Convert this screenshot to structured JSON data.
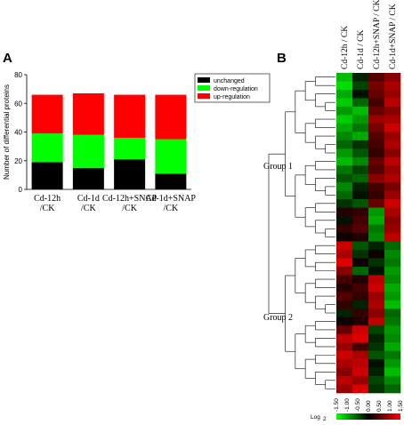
{
  "panels": {
    "a_letter": "A",
    "b_letter": "B"
  },
  "chart_data": [
    {
      "type": "bar",
      "stacked": true,
      "title": "",
      "ylabel": "Number of differential proteins",
      "xlabel": "",
      "ylim": [
        0,
        80
      ],
      "yticks": [
        0,
        20,
        40,
        60,
        80
      ],
      "categories": [
        [
          "Cd-12h",
          "/CK"
        ],
        [
          "Cd-1d",
          "/CK"
        ],
        [
          "Cd-12h+SNAP",
          "/CK"
        ],
        [
          "Cd-1d+SNAP",
          "/CK"
        ]
      ],
      "series": [
        {
          "name": "unchanged",
          "color": "#000000",
          "values": [
            19,
            15,
            21,
            11
          ]
        },
        {
          "name": "down-regulation",
          "color": "#00ff00",
          "values": [
            20,
            23,
            15,
            24
          ]
        },
        {
          "name": "up-regulation",
          "color": "#ff0000",
          "values": [
            27,
            29,
            30,
            31
          ]
        }
      ],
      "legend_position": "top-right"
    },
    {
      "type": "heatmap",
      "columns": [
        "Cd-12h / CK",
        "Cd-1d / CK",
        "Cd-12h+SNAP / CK",
        "Cd-1d+SNAP / CK"
      ],
      "groups": [
        {
          "label": "Group 1"
        },
        {
          "label": "Group 2"
        }
      ],
      "color_scale": {
        "label": "Log",
        "label_sub": "2",
        "min": -1.5,
        "max": 1.5,
        "low_color": "#00ff00",
        "mid_color": "#000000",
        "high_color": "#ff0000",
        "ticks": [
          "-1.50",
          "-1.00",
          "-0.50",
          "0.00",
          "0.50",
          "1.00",
          "1.50"
        ]
      },
      "rows": [
        [
          -1.1,
          -0.2,
          0.5,
          0.8
        ],
        [
          -1.3,
          -0.4,
          0.7,
          1.0
        ],
        [
          -1.0,
          -0.1,
          0.6,
          0.9
        ],
        [
          -1.2,
          -0.6,
          0.4,
          1.1
        ],
        [
          -0.9,
          -1.1,
          0.6,
          0.8
        ],
        [
          -1.2,
          -0.9,
          0.9,
          1.0
        ],
        [
          -1.0,
          -0.7,
          0.7,
          1.2
        ],
        [
          -0.8,
          -1.0,
          0.5,
          0.9
        ],
        [
          -0.6,
          -0.3,
          0.4,
          1.0
        ],
        [
          -0.9,
          -0.5,
          0.3,
          0.8
        ],
        [
          -1.1,
          -0.8,
          0.6,
          1.1
        ],
        [
          -0.7,
          -0.4,
          0.5,
          0.9
        ],
        [
          -0.5,
          -0.6,
          0.8,
          1.0
        ],
        [
          -0.8,
          -0.2,
          0.4,
          0.7
        ],
        [
          -0.6,
          -0.1,
          0.3,
          0.9
        ],
        [
          -0.3,
          -0.5,
          0.6,
          1.2
        ],
        [
          0.2,
          0.3,
          -0.9,
          1.0
        ],
        [
          -0.1,
          0.4,
          -1.0,
          0.8
        ],
        [
          0.3,
          0.5,
          -0.7,
          0.9
        ],
        [
          0.1,
          0.2,
          -0.8,
          1.1
        ],
        [
          1.2,
          -0.5,
          -0.2,
          -0.6
        ],
        [
          1.0,
          -0.3,
          0.1,
          -0.8
        ],
        [
          1.3,
          0.1,
          -0.3,
          -0.7
        ],
        [
          0.8,
          -0.6,
          -0.1,
          -0.9
        ],
        [
          0.4,
          0.2,
          1.1,
          -0.8
        ],
        [
          0.2,
          0.4,
          1.2,
          -1.0
        ],
        [
          0.5,
          0.3,
          0.9,
          -0.9
        ],
        [
          0.3,
          -0.2,
          1.0,
          -1.1
        ],
        [
          -0.2,
          0.3,
          0.8,
          -0.6
        ],
        [
          0.1,
          0.2,
          1.1,
          -0.7
        ],
        [
          0.6,
          1.2,
          -0.4,
          -0.9
        ],
        [
          1.1,
          1.3,
          -0.2,
          -0.8
        ],
        [
          0.9,
          0.4,
          -0.3,
          -1.0
        ],
        [
          1.2,
          1.0,
          -0.5,
          -0.7
        ],
        [
          1.0,
          1.1,
          -0.1,
          -0.9
        ],
        [
          0.8,
          1.2,
          -0.2,
          -1.1
        ],
        [
          1.1,
          0.9,
          -0.4,
          -0.8
        ],
        [
          0.9,
          1.3,
          -0.3,
          -0.6
        ]
      ]
    }
  ]
}
